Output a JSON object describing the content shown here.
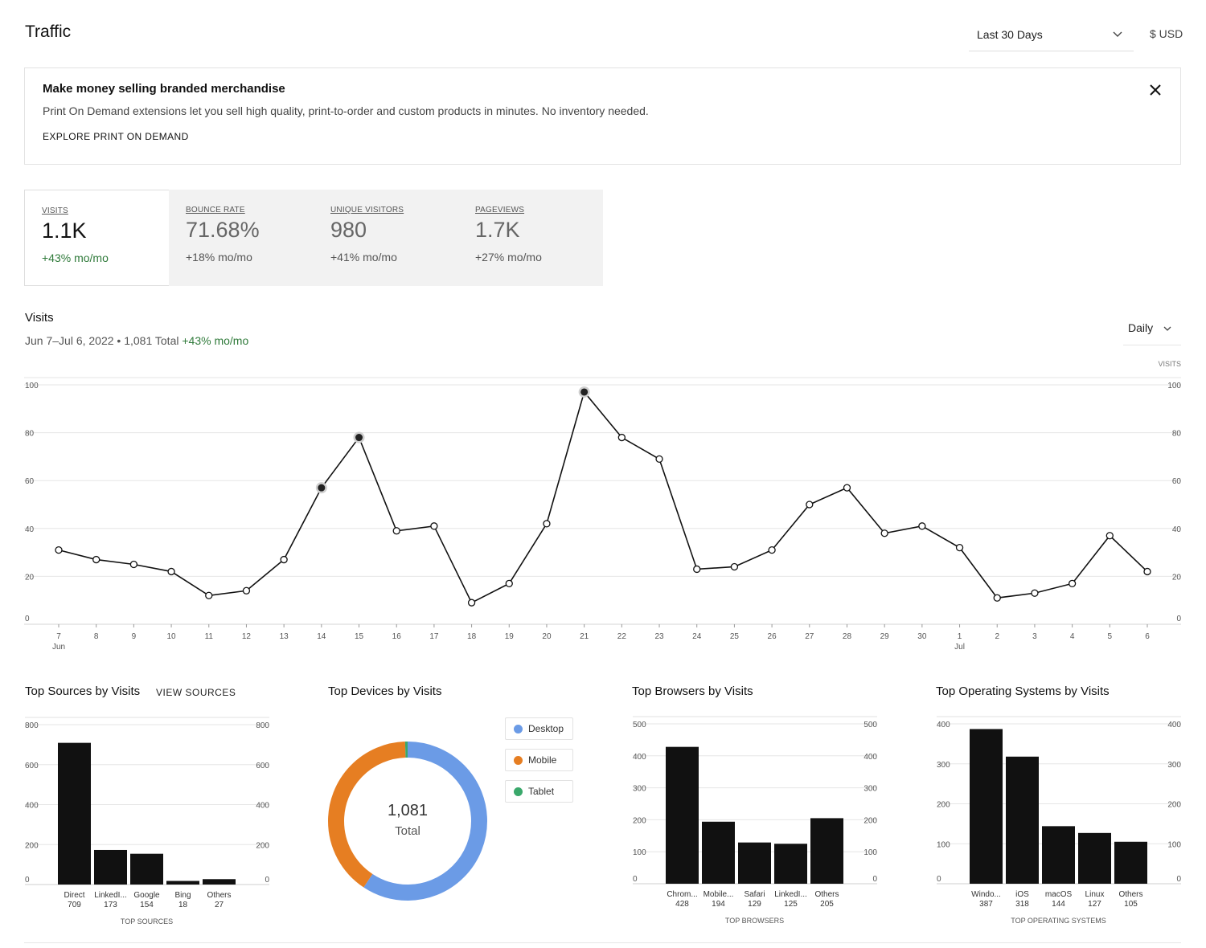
{
  "header": {
    "title": "Traffic",
    "range": "Last 30 Days",
    "currency": "$ USD"
  },
  "promo": {
    "title": "Make money selling branded merchandise",
    "text": "Print On Demand extensions let you sell high quality, print-to-order and custom products in minutes. No inventory needed.",
    "link": "EXPLORE PRINT ON DEMAND"
  },
  "metrics": [
    {
      "label": "VISITS",
      "value": "1.1K",
      "change": "+43% mo/mo"
    },
    {
      "label": "BOUNCE RATE",
      "value": "71.68%",
      "change": "+18% mo/mo"
    },
    {
      "label": "UNIQUE VISITORS",
      "value": "980",
      "change": "+41% mo/mo"
    },
    {
      "label": "PAGEVIEWS",
      "value": "1.7K",
      "change": "+27% mo/mo"
    }
  ],
  "visits_section": {
    "title": "Visits",
    "range": "Jun 7–Jul 6, 2022",
    "separator": " • ",
    "total": "1,081 Total",
    "change": "+43% mo/mo",
    "granularity": "Daily"
  },
  "sources": {
    "title": "Top Sources by Visits",
    "view_link": "VIEW SOURCES"
  },
  "devices": {
    "title": "Top Devices by Visits",
    "center_value": "1,081",
    "center_label": "Total"
  },
  "browsers": {
    "title": "Top Browsers by Visits"
  },
  "os": {
    "title": "Top Operating Systems by Visits"
  },
  "icons": {
    "range_chevron": "chevron-down-icon",
    "granularity_chevron": "chevron-down-icon",
    "promo_close": "close-icon"
  },
  "colors": {
    "positive": "#2f7a3a",
    "bar": "#111111",
    "line": "#111111",
    "desktop": "#6b9be6",
    "mobile": "#e67e22",
    "tablet": "#3aa86b"
  },
  "chart_data": [
    {
      "type": "line",
      "id": "visits",
      "corner_label": "VISITS",
      "x": [
        "7",
        "8",
        "9",
        "10",
        "11",
        "12",
        "13",
        "14",
        "15",
        "16",
        "17",
        "18",
        "19",
        "20",
        "21",
        "22",
        "23",
        "24",
        "25",
        "26",
        "27",
        "28",
        "29",
        "30",
        "1",
        "2",
        "3",
        "4",
        "5",
        "6"
      ],
      "month_labels": [
        {
          "index": 0,
          "label": "Jun"
        },
        {
          "index": 24,
          "label": "Jul"
        }
      ],
      "values": [
        31,
        27,
        25,
        22,
        12,
        14,
        27,
        57,
        78,
        39,
        41,
        9,
        17,
        42,
        97,
        78,
        69,
        23,
        24,
        31,
        50,
        57,
        38,
        41,
        32,
        11,
        13,
        17,
        37,
        22
      ],
      "highlighted": [
        7,
        8,
        14
      ],
      "yticks": [
        0,
        20,
        40,
        60,
        80,
        100
      ],
      "ylim": [
        0,
        100
      ],
      "grid": true
    },
    {
      "type": "bar",
      "id": "sources",
      "categories": [
        "Direct",
        "LinkedI...",
        "Google",
        "Bing",
        "Others"
      ],
      "values": [
        709,
        173,
        154,
        18,
        27
      ],
      "value_labels": [
        "709",
        "173",
        "154",
        "18",
        "27"
      ],
      "xlabel": "TOP SOURCES",
      "yticks": [
        0,
        200,
        400,
        600,
        800
      ],
      "ylim": [
        0,
        800
      ]
    },
    {
      "type": "pie",
      "id": "devices",
      "categories": [
        "Desktop",
        "Mobile",
        "Tablet"
      ],
      "values": [
        641,
        434,
        6
      ],
      "colors": [
        "#6b9be6",
        "#e67e22",
        "#3aa86b"
      ]
    },
    {
      "type": "bar",
      "id": "browsers",
      "categories": [
        "Chrom...",
        "Mobile...",
        "Safari",
        "LinkedI...",
        "Others"
      ],
      "values": [
        428,
        194,
        129,
        125,
        205
      ],
      "value_labels": [
        "428",
        "194",
        "129",
        "125",
        "205"
      ],
      "xlabel": "TOP BROWSERS",
      "yticks": [
        0,
        100,
        200,
        300,
        400,
        500
      ],
      "ylim": [
        0,
        500
      ]
    },
    {
      "type": "bar",
      "id": "os",
      "categories": [
        "Windo...",
        "iOS",
        "macOS",
        "Linux",
        "Others"
      ],
      "values": [
        387,
        318,
        144,
        127,
        105
      ],
      "value_labels": [
        "387",
        "318",
        "144",
        "127",
        "105"
      ],
      "xlabel": "TOP OPERATING SYSTEMS",
      "yticks": [
        0,
        100,
        200,
        300,
        400
      ],
      "ylim": [
        0,
        400
      ]
    }
  ]
}
